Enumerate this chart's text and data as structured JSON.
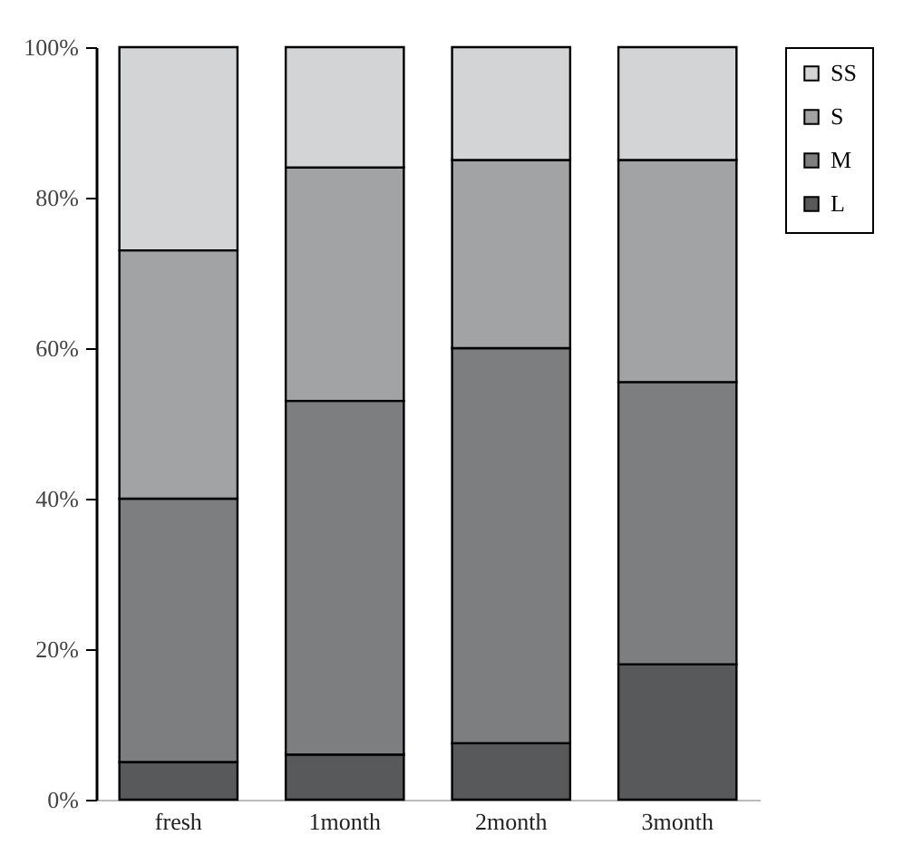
{
  "chart_data": {
    "type": "bar",
    "stacked": true,
    "categories": [
      "fresh",
      "1month",
      "2month",
      "3month"
    ],
    "series": [
      {
        "name": "L",
        "color": "#58595b",
        "values": [
          5,
          6,
          7.5,
          18
        ]
      },
      {
        "name": "M",
        "color": "#7d7e80",
        "values": [
          35,
          47,
          52.5,
          37.5
        ]
      },
      {
        "name": "S",
        "color": "#a2a3a5",
        "values": [
          33,
          31,
          25,
          29.5
        ]
      },
      {
        "name": "SS",
        "color": "#d3d4d6",
        "values": [
          27,
          16,
          15,
          15
        ]
      }
    ],
    "ylim": [
      0,
      100
    ],
    "yticks": [
      {
        "value": 0,
        "label": "0%"
      },
      {
        "value": 20,
        "label": "20%"
      },
      {
        "value": 40,
        "label": "40%"
      },
      {
        "value": 60,
        "label": "60%"
      },
      {
        "value": 80,
        "label": "80%"
      },
      {
        "value": 100,
        "label": "100%"
      }
    ],
    "grid": false,
    "legend": "top right"
  }
}
